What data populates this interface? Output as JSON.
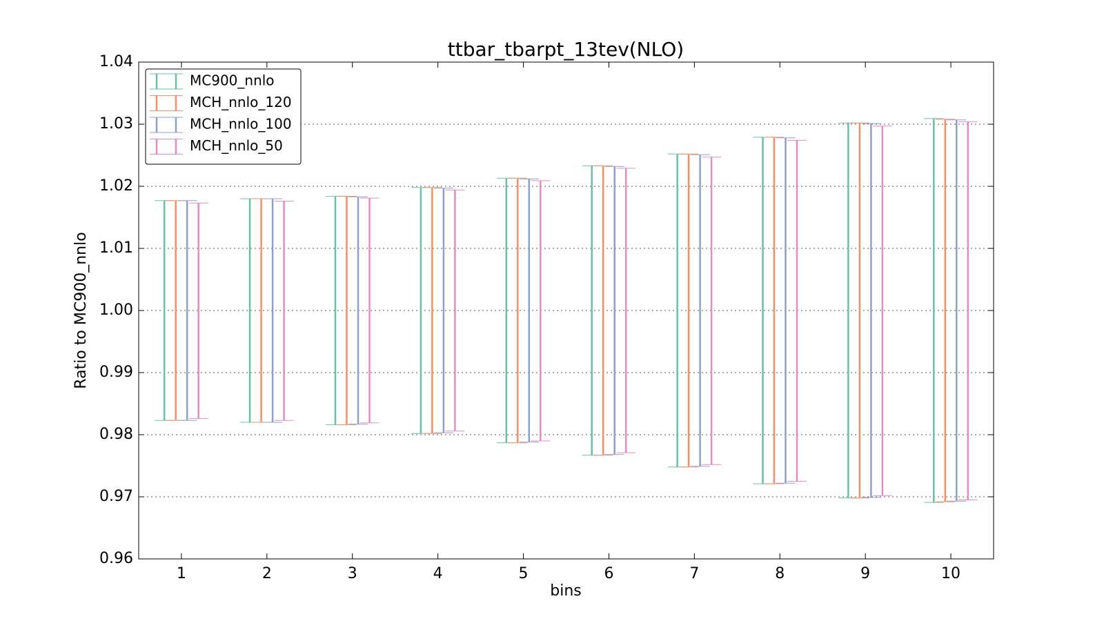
{
  "chart_data": {
    "type": "errorbar",
    "title": "ttbar_tbarpt_13tev(NLO)",
    "x_label": "bins",
    "y_label": "Ratio to MC900_nnlo",
    "x": [
      1,
      2,
      3,
      4,
      5,
      6,
      7,
      8,
      9,
      10
    ],
    "xlim": [
      0.5,
      10.5
    ],
    "xticks": [
      1,
      2,
      3,
      4,
      5,
      6,
      7,
      8,
      9,
      10
    ],
    "ylim": [
      0.96,
      1.04
    ],
    "yticks": [
      0.96,
      0.97,
      0.98,
      0.99,
      {
        "value": 1,
        "label": "1.00"
      },
      1.01,
      1.02,
      1.03,
      1.04
    ],
    "grid": true,
    "legend": "upper-left",
    "series": [
      {
        "name": "MC900_nnlo",
        "color": "#66c2a5",
        "high": [
          1.0177,
          1.018,
          1.0184,
          1.0198,
          1.0213,
          1.0233,
          1.0252,
          1.0279,
          1.0302,
          1.0309
        ],
        "low": [
          0.9823,
          0.982,
          0.9816,
          0.9802,
          0.9787,
          0.9767,
          0.9748,
          0.9721,
          0.9698,
          0.9691
        ]
      },
      {
        "name": "MCH_nnlo_120",
        "color": "#fc8d62",
        "high": [
          1.0177,
          1.018,
          1.0184,
          1.0198,
          1.0213,
          1.0233,
          1.0252,
          1.0279,
          1.0302,
          1.0308
        ],
        "low": [
          0.9823,
          0.982,
          0.9816,
          0.9802,
          0.9787,
          0.9767,
          0.9748,
          0.9721,
          0.9698,
          0.9692
        ]
      },
      {
        "name": "MCH_nnlo_100",
        "color": "#8da0cb",
        "high": [
          1.0177,
          1.018,
          1.0183,
          1.0197,
          1.0212,
          1.0232,
          1.0251,
          1.0278,
          1.0301,
          1.0307
        ],
        "low": [
          0.9823,
          0.982,
          0.9817,
          0.9803,
          0.9788,
          0.9768,
          0.9749,
          0.9722,
          0.9699,
          0.9693
        ]
      },
      {
        "name": "MCH_nnlo_50",
        "color": "#e78ac3",
        "high": [
          1.0173,
          1.0176,
          1.0181,
          1.0194,
          1.0209,
          1.0229,
          1.0247,
          1.0274,
          1.0297,
          1.0304
        ],
        "low": [
          0.9826,
          0.9823,
          0.9819,
          0.9806,
          0.979,
          0.9771,
          0.9752,
          0.9725,
          0.9702,
          0.9695
        ]
      }
    ]
  }
}
